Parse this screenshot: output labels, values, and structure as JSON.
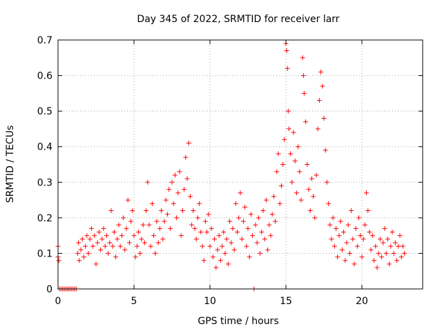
{
  "chart_data": {
    "type": "scatter",
    "title": "Day 345 of 2022, SRMTID for receiver larr",
    "xlabel": "GPS time / hours",
    "ylabel": "SRMTID / TECUs",
    "xlim": [
      0,
      24
    ],
    "ylim": [
      0,
      0.7
    ],
    "xticks": [
      0,
      5,
      10,
      15,
      20
    ],
    "xtick_labels": [
      "0",
      "5",
      "10",
      "15",
      "20"
    ],
    "yticks": [
      0,
      0.1,
      0.2,
      0.3,
      0.4,
      0.5,
      0.6,
      0.7
    ],
    "ytick_labels": [
      "0",
      "0.1",
      "0.2",
      "0.3",
      "0.4",
      "0.5",
      "0.6",
      "0.7"
    ],
    "grid": true,
    "marker": "+",
    "series_color": "#ff0000",
    "series": [
      {
        "name": "SRMTID",
        "points": [
          [
            0.0,
            0.09
          ],
          [
            0.0,
            0.12
          ],
          [
            0.05,
            0.08
          ],
          [
            0.1,
            0.0
          ],
          [
            0.2,
            0.0
          ],
          [
            0.3,
            0.0
          ],
          [
            0.4,
            0.0
          ],
          [
            0.5,
            0.0
          ],
          [
            0.6,
            0.0
          ],
          [
            0.7,
            0.0
          ],
          [
            0.8,
            0.0
          ],
          [
            0.9,
            0.0
          ],
          [
            1.0,
            0.0
          ],
          [
            1.1,
            0.0
          ],
          [
            1.2,
            0.0
          ],
          [
            1.3,
            0.1
          ],
          [
            1.35,
            0.13
          ],
          [
            1.4,
            0.08
          ],
          [
            1.5,
            0.11
          ],
          [
            1.6,
            0.14
          ],
          [
            1.7,
            0.09
          ],
          [
            1.8,
            0.12
          ],
          [
            1.9,
            0.15
          ],
          [
            2.0,
            0.1
          ],
          [
            2.1,
            0.14
          ],
          [
            2.2,
            0.17
          ],
          [
            2.3,
            0.12
          ],
          [
            2.4,
            0.15
          ],
          [
            2.5,
            0.07
          ],
          [
            2.6,
            0.13
          ],
          [
            2.7,
            0.16
          ],
          [
            2.8,
            0.11
          ],
          [
            2.9,
            0.14
          ],
          [
            3.0,
            0.17
          ],
          [
            3.1,
            0.12
          ],
          [
            3.2,
            0.15
          ],
          [
            3.3,
            0.1
          ],
          [
            3.4,
            0.13
          ],
          [
            3.5,
            0.22
          ],
          [
            3.6,
            0.12
          ],
          [
            3.7,
            0.16
          ],
          [
            3.8,
            0.09
          ],
          [
            3.9,
            0.14
          ],
          [
            4.0,
            0.18
          ],
          [
            4.1,
            0.12
          ],
          [
            4.2,
            0.15
          ],
          [
            4.3,
            0.2
          ],
          [
            4.4,
            0.11
          ],
          [
            4.5,
            0.17
          ],
          [
            4.6,
            0.25
          ],
          [
            4.7,
            0.13
          ],
          [
            4.8,
            0.19
          ],
          [
            4.9,
            0.22
          ],
          [
            5.0,
            0.15
          ],
          [
            5.1,
            0.09
          ],
          [
            5.2,
            0.12
          ],
          [
            5.3,
            0.16
          ],
          [
            5.4,
            0.1
          ],
          [
            5.5,
            0.14
          ],
          [
            5.6,
            0.18
          ],
          [
            5.7,
            0.13
          ],
          [
            5.8,
            0.22
          ],
          [
            5.9,
            0.3
          ],
          [
            6.0,
            0.18
          ],
          [
            6.1,
            0.12
          ],
          [
            6.2,
            0.24
          ],
          [
            6.3,
            0.15
          ],
          [
            6.4,
            0.1
          ],
          [
            6.5,
            0.19
          ],
          [
            6.6,
            0.13
          ],
          [
            6.7,
            0.17
          ],
          [
            6.8,
            0.22
          ],
          [
            6.9,
            0.14
          ],
          [
            7.0,
            0.19
          ],
          [
            7.1,
            0.25
          ],
          [
            7.2,
            0.21
          ],
          [
            7.3,
            0.28
          ],
          [
            7.4,
            0.17
          ],
          [
            7.5,
            0.3
          ],
          [
            7.6,
            0.24
          ],
          [
            7.7,
            0.32
          ],
          [
            7.8,
            0.2
          ],
          [
            7.9,
            0.27
          ],
          [
            8.0,
            0.33
          ],
          [
            8.1,
            0.15
          ],
          [
            8.2,
            0.22
          ],
          [
            8.3,
            0.28
          ],
          [
            8.4,
            0.37
          ],
          [
            8.5,
            0.31
          ],
          [
            8.6,
            0.41
          ],
          [
            8.7,
            0.26
          ],
          [
            8.8,
            0.18
          ],
          [
            8.9,
            0.22
          ],
          [
            9.0,
            0.17
          ],
          [
            9.1,
            0.14
          ],
          [
            9.2,
            0.2
          ],
          [
            9.3,
            0.24
          ],
          [
            9.4,
            0.16
          ],
          [
            9.5,
            0.12
          ],
          [
            9.6,
            0.08
          ],
          [
            9.7,
            0.19
          ],
          [
            9.8,
            0.16
          ],
          [
            9.9,
            0.21
          ],
          [
            10.0,
            0.12
          ],
          [
            10.1,
            0.17
          ],
          [
            10.2,
            0.09
          ],
          [
            10.3,
            0.14
          ],
          [
            10.4,
            0.06
          ],
          [
            10.5,
            0.11
          ],
          [
            10.6,
            0.15
          ],
          [
            10.7,
            0.08
          ],
          [
            10.8,
            0.12
          ],
          [
            10.9,
            0.16
          ],
          [
            11.0,
            0.1
          ],
          [
            11.1,
            0.14
          ],
          [
            11.2,
            0.07
          ],
          [
            11.3,
            0.19
          ],
          [
            11.4,
            0.13
          ],
          [
            11.5,
            0.17
          ],
          [
            11.6,
            0.11
          ],
          [
            11.7,
            0.24
          ],
          [
            11.8,
            0.16
          ],
          [
            11.9,
            0.2
          ],
          [
            12.0,
            0.27
          ],
          [
            12.1,
            0.14
          ],
          [
            12.2,
            0.19
          ],
          [
            12.3,
            0.23
          ],
          [
            12.4,
            0.12
          ],
          [
            12.5,
            0.17
          ],
          [
            12.6,
            0.09
          ],
          [
            12.7,
            0.21
          ],
          [
            12.8,
            0.15
          ],
          [
            12.9,
            0.0
          ],
          [
            13.0,
            0.18
          ],
          [
            13.1,
            0.13
          ],
          [
            13.2,
            0.2
          ],
          [
            13.3,
            0.1
          ],
          [
            13.4,
            0.16
          ],
          [
            13.5,
            0.22
          ],
          [
            13.6,
            0.14
          ],
          [
            13.7,
            0.25
          ],
          [
            13.8,
            0.11
          ],
          [
            13.9,
            0.18
          ],
          [
            14.0,
            0.15
          ],
          [
            14.1,
            0.21
          ],
          [
            14.2,
            0.26
          ],
          [
            14.3,
            0.19
          ],
          [
            14.4,
            0.33
          ],
          [
            14.5,
            0.38
          ],
          [
            14.6,
            0.24
          ],
          [
            14.7,
            0.29
          ],
          [
            14.8,
            0.35
          ],
          [
            14.9,
            0.42
          ],
          [
            15.0,
            0.69
          ],
          [
            15.05,
            0.67
          ],
          [
            15.1,
            0.62
          ],
          [
            15.15,
            0.5
          ],
          [
            15.2,
            0.45
          ],
          [
            15.3,
            0.38
          ],
          [
            15.4,
            0.3
          ],
          [
            15.5,
            0.44
          ],
          [
            15.6,
            0.36
          ],
          [
            15.7,
            0.27
          ],
          [
            15.8,
            0.4
          ],
          [
            15.9,
            0.33
          ],
          [
            16.0,
            0.25
          ],
          [
            16.1,
            0.65
          ],
          [
            16.15,
            0.6
          ],
          [
            16.2,
            0.55
          ],
          [
            16.3,
            0.47
          ],
          [
            16.4,
            0.35
          ],
          [
            16.5,
            0.28
          ],
          [
            16.6,
            0.22
          ],
          [
            16.7,
            0.31
          ],
          [
            16.8,
            0.26
          ],
          [
            16.9,
            0.2
          ],
          [
            17.0,
            0.32
          ],
          [
            17.1,
            0.45
          ],
          [
            17.2,
            0.53
          ],
          [
            17.3,
            0.61
          ],
          [
            17.4,
            0.57
          ],
          [
            17.5,
            0.48
          ],
          [
            17.6,
            0.39
          ],
          [
            17.7,
            0.3
          ],
          [
            17.8,
            0.24
          ],
          [
            17.9,
            0.18
          ],
          [
            18.0,
            0.14
          ],
          [
            18.1,
            0.2
          ],
          [
            18.2,
            0.12
          ],
          [
            18.3,
            0.17
          ],
          [
            18.4,
            0.09
          ],
          [
            18.5,
            0.15
          ],
          [
            18.6,
            0.19
          ],
          [
            18.7,
            0.11
          ],
          [
            18.8,
            0.16
          ],
          [
            18.9,
            0.08
          ],
          [
            19.0,
            0.13
          ],
          [
            19.1,
            0.18
          ],
          [
            19.2,
            0.1
          ],
          [
            19.3,
            0.22
          ],
          [
            19.4,
            0.14
          ],
          [
            19.5,
            0.07
          ],
          [
            19.6,
            0.17
          ],
          [
            19.7,
            0.12
          ],
          [
            19.8,
            0.2
          ],
          [
            19.9,
            0.15
          ],
          [
            20.0,
            0.09
          ],
          [
            20.1,
            0.14
          ],
          [
            20.2,
            0.18
          ],
          [
            20.3,
            0.27
          ],
          [
            20.4,
            0.22
          ],
          [
            20.5,
            0.16
          ],
          [
            20.6,
            0.11
          ],
          [
            20.7,
            0.15
          ],
          [
            20.8,
            0.08
          ],
          [
            20.9,
            0.12
          ],
          [
            21.0,
            0.06
          ],
          [
            21.1,
            0.1
          ],
          [
            21.2,
            0.14
          ],
          [
            21.3,
            0.09
          ],
          [
            21.4,
            0.13
          ],
          [
            21.5,
            0.17
          ],
          [
            21.6,
            0.1
          ],
          [
            21.7,
            0.14
          ],
          [
            21.8,
            0.07
          ],
          [
            21.9,
            0.12
          ],
          [
            22.0,
            0.16
          ],
          [
            22.1,
            0.1
          ],
          [
            22.2,
            0.13
          ],
          [
            22.3,
            0.08
          ],
          [
            22.4,
            0.12
          ],
          [
            22.5,
            0.15
          ],
          [
            22.6,
            0.09
          ],
          [
            22.7,
            0.12
          ],
          [
            22.8,
            0.1
          ]
        ]
      }
    ]
  }
}
